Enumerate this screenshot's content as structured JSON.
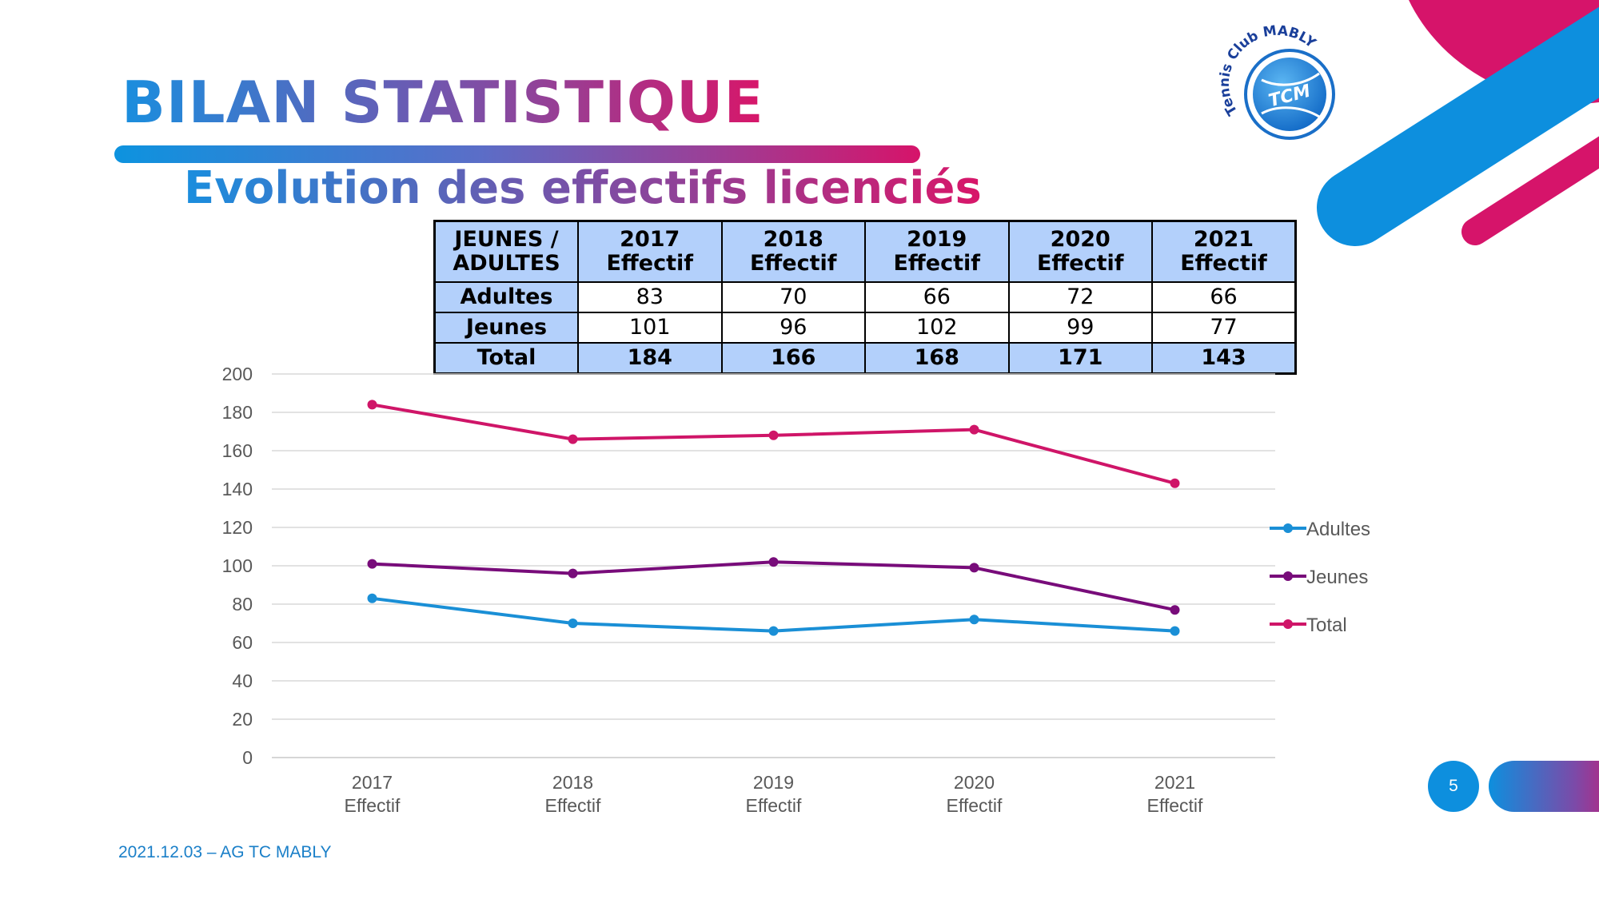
{
  "slide": {
    "title": "BILAN STATISTIQUE",
    "subtitle": "Evolution des effectifs licenciés",
    "footer": "2021.12.03 – AG TC MABLY",
    "page_number": "5",
    "logo": {
      "text_top": "Tennis Club MABLY",
      "text_center": "TCM"
    }
  },
  "colors": {
    "adultes": "#1a8fd6",
    "jeunes": "#780c7a",
    "total": "#cf1568",
    "accent_blue": "#0d8fde",
    "accent_pink": "#d6146a",
    "table_header": "#b3d0fb"
  },
  "table": {
    "corner_line1": "JEUNES /",
    "corner_line2": "ADULTES",
    "columns": [
      {
        "year": "2017",
        "label": "Effectif"
      },
      {
        "year": "2018",
        "label": "Effectif"
      },
      {
        "year": "2019",
        "label": "Effectif"
      },
      {
        "year": "2020",
        "label": "Effectif"
      },
      {
        "year": "2021",
        "label": "Effectif"
      }
    ],
    "rows": [
      {
        "label": "Adultes",
        "values": [
          "83",
          "70",
          "66",
          "72",
          "66"
        ]
      },
      {
        "label": "Jeunes",
        "values": [
          "101",
          "96",
          "102",
          "99",
          "77"
        ]
      },
      {
        "label": "Total",
        "values": [
          "184",
          "166",
          "168",
          "171",
          "143"
        ]
      }
    ]
  },
  "chart_data": {
    "type": "line",
    "categories": [
      "2017 Effectif",
      "2018 Effectif",
      "2019 Effectif",
      "2020 Effectif",
      "2021 Effectif"
    ],
    "category_lines": [
      [
        "2017",
        "Effectif"
      ],
      [
        "2018",
        "Effectif"
      ],
      [
        "2019",
        "Effectif"
      ],
      [
        "2020",
        "Effectif"
      ],
      [
        "2021",
        "Effectif"
      ]
    ],
    "series": [
      {
        "name": "Adultes",
        "values": [
          83,
          70,
          66,
          72,
          66
        ],
        "color": "#1a8fd6"
      },
      {
        "name": "Jeunes",
        "values": [
          101,
          96,
          102,
          99,
          77
        ],
        "color": "#780c7a"
      },
      {
        "name": "Total",
        "values": [
          184,
          166,
          168,
          171,
          143
        ],
        "color": "#cf1568"
      }
    ],
    "yticks": [
      0,
      20,
      40,
      60,
      80,
      100,
      120,
      140,
      160,
      180,
      200
    ],
    "ylim": [
      0,
      200
    ],
    "grid": true,
    "legend": "right"
  }
}
